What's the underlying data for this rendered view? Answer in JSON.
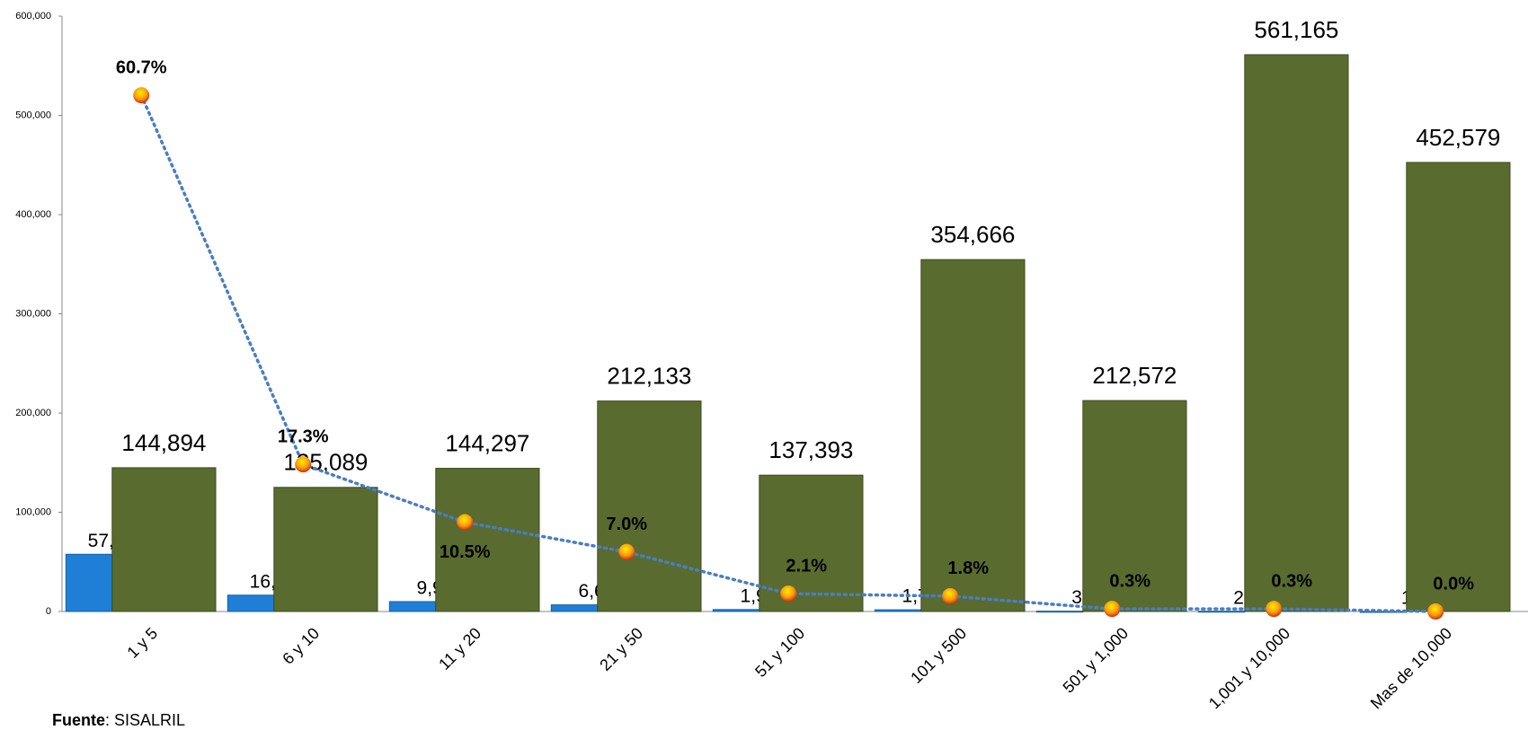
{
  "chart_data": {
    "type": "bar",
    "categories": [
      "1 y 5",
      "6 y 10",
      "11 y 20",
      "21 y 50",
      "51 y 100",
      "101 y 500",
      "501 y 1,000",
      "1,001 y 10,000",
      "Mas de 10,000"
    ],
    "series": [
      {
        "color": "#1f7fd6",
        "values": [
          57662,
          16473,
          9962,
          6696,
          1968,
          1709,
          302,
          255,
          11
        ],
        "value_labels": [
          "57,662",
          "16,473",
          "9,962",
          "6,696",
          "1,968",
          "1,709",
          "302",
          "255",
          "11"
        ]
      },
      {
        "color": "#5a6b2f",
        "values": [
          144894,
          125089,
          144297,
          212133,
          137393,
          354666,
          212572,
          561165,
          452579
        ],
        "value_labels": [
          "144,894",
          "125,089",
          "144,297",
          "212,133",
          "137,393",
          "354,666",
          "212,572",
          "561,165",
          "452,579"
        ]
      },
      {
        "type": "line",
        "axis": "y2",
        "color": "#4a7ec0",
        "values": [
          60.7,
          17.3,
          10.5,
          7.0,
          2.1,
          1.8,
          0.3,
          0.3,
          0.0
        ],
        "value_labels": [
          "60.7%",
          "17.3%",
          "10.5%",
          "7.0%",
          "2.1%",
          "1.8%",
          "0.3%",
          "0.3%",
          "0.0%"
        ]
      }
    ],
    "ylim": [
      0,
      600000
    ],
    "yticks": [
      0,
      {
        "value": 100000,
        "label": "100,000"
      },
      {
        "value": 200000,
        "label": "200,000"
      },
      {
        "value": 300000,
        "label": "300,000"
      },
      {
        "value": 400000,
        "label": "400,000"
      },
      {
        "value": 500000,
        "label": "500,000"
      },
      {
        "value": 600000,
        "label": "600,000"
      }
    ],
    "y2lim": [
      0,
      70
    ],
    "source": {
      "label": "Fuente",
      "text": ": SISALRIL"
    }
  }
}
